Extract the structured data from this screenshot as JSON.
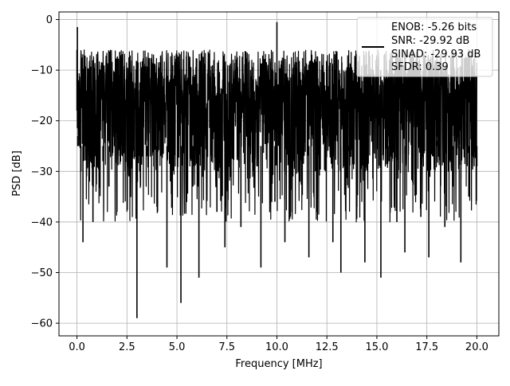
{
  "chart_data": {
    "type": "line",
    "title": "",
    "xlabel": "Frequency [MHz]",
    "ylabel": "PSD [dB]",
    "xlim": [
      -0.9,
      21.1
    ],
    "ylim": [
      -62.5,
      1.5
    ],
    "xticks": [
      0.0,
      2.5,
      5.0,
      7.5,
      10.0,
      12.5,
      15.0,
      17.5,
      20.0
    ],
    "xtick_labels": [
      "0.0",
      "2.5",
      "5.0",
      "7.5",
      "10.0",
      "12.5",
      "15.0",
      "17.5",
      "20.0"
    ],
    "yticks": [
      0,
      -10,
      -20,
      -30,
      -40,
      -50,
      -60
    ],
    "ytick_labels": [
      "0",
      "−10",
      "−20",
      "−30",
      "−40",
      "−50",
      "−60"
    ],
    "grid": true,
    "legend_position": "top-right",
    "series": [
      {
        "color": "#000000",
        "x": [
          0.0,
          0.02,
          0.04,
          0.06,
          0.08,
          0.1,
          0.2,
          0.3,
          0.4,
          0.6,
          0.8,
          1.0,
          1.3,
          1.6,
          2.0,
          2.3,
          2.6,
          3.0,
          3.2,
          3.5,
          4.0,
          4.5,
          4.9,
          5.2,
          5.7,
          5.8,
          6.1,
          6.5,
          7.0,
          7.4,
          7.8,
          8.2,
          8.8,
          9.2,
          9.5,
          9.9,
          10.0,
          10.4,
          10.8,
          11.2,
          11.6,
          12.0,
          12.4,
          12.8,
          13.2,
          13.6,
          14.0,
          14.4,
          14.8,
          15.2,
          15.6,
          16.0,
          16.4,
          16.8,
          17.2,
          17.6,
          18.0,
          18.4,
          18.8,
          19.2,
          19.4,
          19.6,
          20.0
        ],
        "y": [
          -6,
          -1.5,
          -23,
          -12,
          -18,
          -20,
          -30,
          -44,
          -22,
          -27,
          -40,
          -15,
          -28,
          -33,
          -38,
          -24,
          -31,
          -59,
          -12,
          -27,
          -37,
          -49,
          -15,
          -56,
          -20,
          -33,
          -51,
          -24,
          -38,
          -45,
          -19,
          -41,
          -29,
          -49,
          -22,
          -36,
          -0.5,
          -44,
          -31,
          -21,
          -47,
          -38,
          -27,
          -44,
          -50,
          -26,
          -37,
          -48,
          -23,
          -51,
          -28,
          -40,
          -46,
          -19,
          -39,
          -47,
          -24,
          -41,
          -33,
          -48,
          -20,
          -35,
          -29
        ]
      }
    ],
    "legend": {
      "lines": [
        "ENOB: -5.26 bits",
        "SNR: -29.92 dB",
        "SINAD: -29.93 dB",
        "SFDR: 0.39"
      ]
    }
  }
}
